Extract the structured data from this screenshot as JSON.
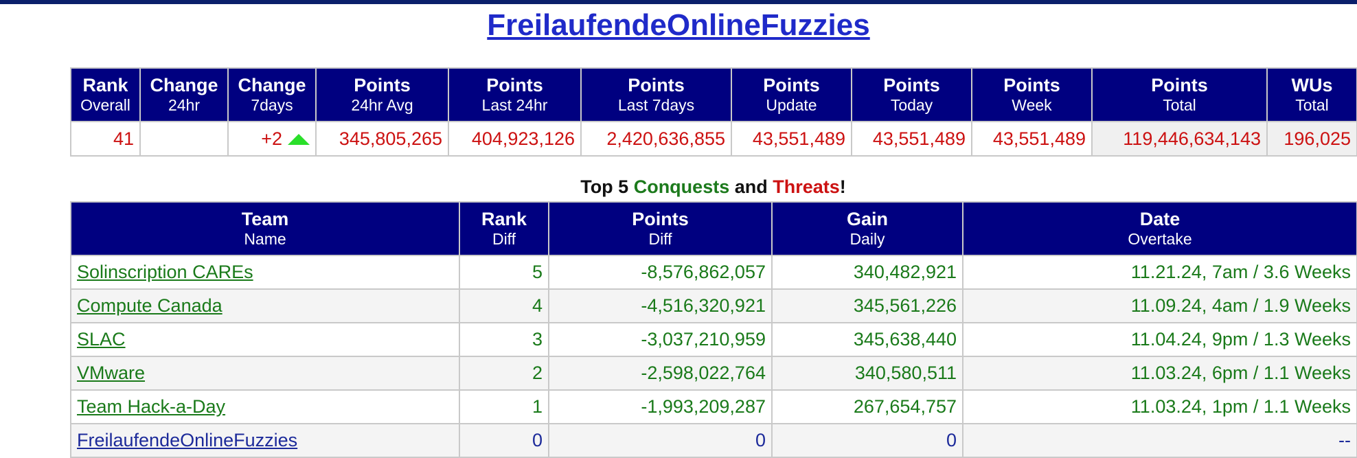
{
  "page": {
    "title": "FreilaufendeOnlineFuzzies"
  },
  "stats": {
    "headers": [
      {
        "top": "Rank",
        "bottom": "Overall"
      },
      {
        "top": "Change",
        "bottom": "24hr"
      },
      {
        "top": "Change",
        "bottom": "7days"
      },
      {
        "top": "Points",
        "bottom": "24hr Avg"
      },
      {
        "top": "Points",
        "bottom": "Last 24hr"
      },
      {
        "top": "Points",
        "bottom": "Last 7days"
      },
      {
        "top": "Points",
        "bottom": "Update"
      },
      {
        "top": "Points",
        "bottom": "Today"
      },
      {
        "top": "Points",
        "bottom": "Week"
      },
      {
        "top": "Points",
        "bottom": "Total"
      },
      {
        "top": "WUs",
        "bottom": "Total"
      }
    ],
    "row": {
      "rank_overall": "41",
      "change_24hr": "",
      "change_7days": "+2",
      "change_7days_icon": "up-triangle-icon",
      "points_24hr_avg": "345,805,265",
      "points_last_24hr": "404,923,126",
      "points_last_7days": "2,420,636,855",
      "points_update": "43,551,489",
      "points_today": "43,551,489",
      "points_week": "43,551,489",
      "points_total": "119,446,634,143",
      "wus_total": "196,025"
    }
  },
  "conquests": {
    "heading": {
      "prefix": "Top 5 ",
      "conquests": "Conquests",
      "and": " and ",
      "threats": "Threats",
      "suffix": "!"
    },
    "headers": [
      {
        "top": "Team",
        "bottom": "Name"
      },
      {
        "top": "Rank",
        "bottom": "Diff"
      },
      {
        "top": "Points",
        "bottom": "Diff"
      },
      {
        "top": "Gain",
        "bottom": "Daily"
      },
      {
        "top": "Date",
        "bottom": "Overtake"
      }
    ],
    "rows": [
      {
        "team": "Solinscription CAREs",
        "rank_diff": "5",
        "points_diff": "-8,576,862,057",
        "gain_daily": "340,482,921",
        "date_overtake": "11.21.24, 7am / 3.6 Weeks"
      },
      {
        "team": "Compute Canada",
        "rank_diff": "4",
        "points_diff": "-4,516,320,921",
        "gain_daily": "345,561,226",
        "date_overtake": "11.09.24, 4am / 1.9 Weeks"
      },
      {
        "team": "SLAC",
        "rank_diff": "3",
        "points_diff": "-3,037,210,959",
        "gain_daily": "345,638,440",
        "date_overtake": "11.04.24, 9pm / 1.3 Weeks"
      },
      {
        "team": "VMware",
        "rank_diff": "2",
        "points_diff": "-2,598,022,764",
        "gain_daily": "340,580,511",
        "date_overtake": "11.03.24, 6pm / 1.1 Weeks"
      },
      {
        "team": "Team Hack-a-Day",
        "rank_diff": "1",
        "points_diff": "-1,993,209,287",
        "gain_daily": "267,654,757",
        "date_overtake": "11.03.24, 1pm / 1.1 Weeks"
      },
      {
        "team": "FreilaufendeOnlineFuzzies",
        "rank_diff": "0",
        "points_diff": "0",
        "gain_daily": "0",
        "date_overtake": "--"
      }
    ]
  },
  "colors": {
    "header_bg": "#000080",
    "positive_text": "#1a7a1a",
    "negative_text": "#cc1111",
    "self_text": "#1c2a9a",
    "link_title": "#1f2ac9"
  }
}
